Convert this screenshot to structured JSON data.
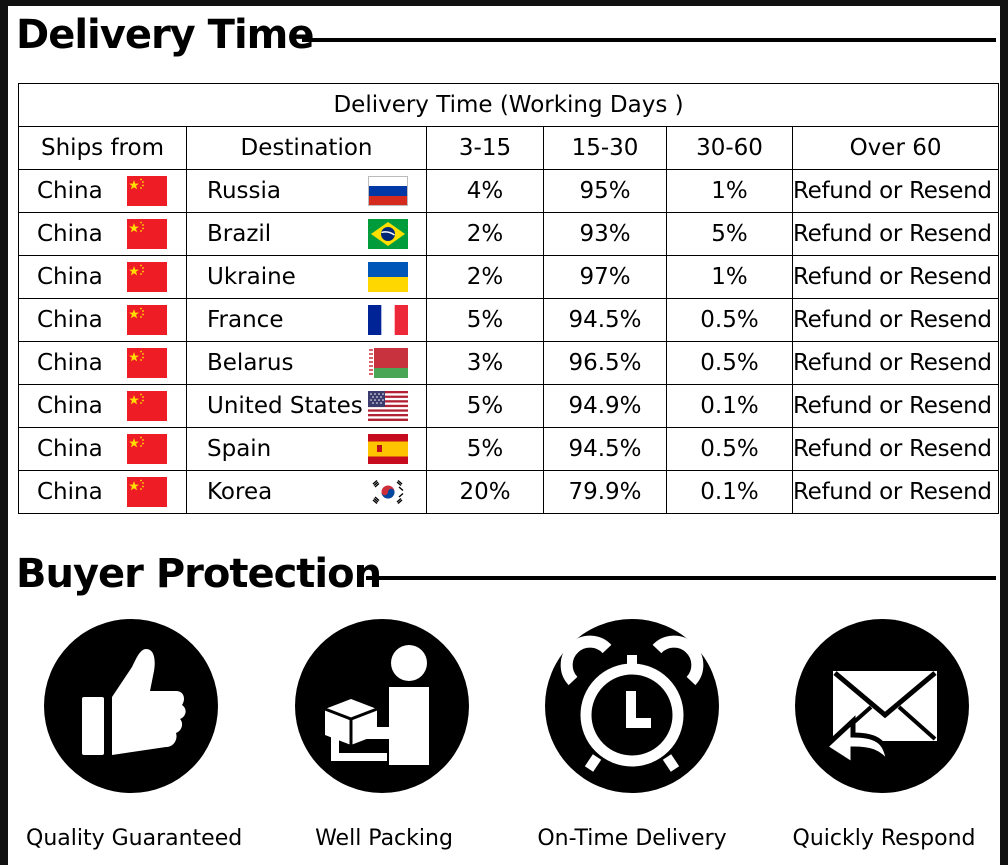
{
  "delivery": {
    "title": "Delivery Time",
    "table_title": "Delivery Time (Working Days )",
    "headers": [
      "Ships from",
      "Destination",
      "3-15",
      "15-30",
      "30-60",
      "Over 60"
    ],
    "rows": [
      {
        "from": "China",
        "from_flag": "china-flag-icon",
        "dest": "Russia",
        "dest_flag": "russia-flag-icon",
        "d3_15": "4%",
        "d15_30": "95%",
        "d30_60": "1%",
        "over60": "Refund or Resend"
      },
      {
        "from": "China",
        "from_flag": "china-flag-icon",
        "dest": "Brazil",
        "dest_flag": "brazil-flag-icon",
        "d3_15": "2%",
        "d15_30": "93%",
        "d30_60": "5%",
        "over60": "Refund or Resend"
      },
      {
        "from": "China",
        "from_flag": "china-flag-icon",
        "dest": "Ukraine",
        "dest_flag": "ukraine-flag-icon",
        "d3_15": "2%",
        "d15_30": "97%",
        "d30_60": "1%",
        "over60": "Refund or Resend"
      },
      {
        "from": "China",
        "from_flag": "china-flag-icon",
        "dest": "France",
        "dest_flag": "france-flag-icon",
        "d3_15": "5%",
        "d15_30": "94.5%",
        "d30_60": "0.5%",
        "over60": "Refund or Resend"
      },
      {
        "from": "China",
        "from_flag": "china-flag-icon",
        "dest": "Belarus",
        "dest_flag": "belarus-flag-icon",
        "d3_15": "3%",
        "d15_30": "96.5%",
        "d30_60": "0.5%",
        "over60": "Refund or Resend"
      },
      {
        "from": "China",
        "from_flag": "china-flag-icon",
        "dest": "United States",
        "dest_flag": "usa-flag-icon",
        "d3_15": "5%",
        "d15_30": "94.9%",
        "d30_60": "0.1%",
        "over60": "Refund or Resend"
      },
      {
        "from": "China",
        "from_flag": "china-flag-icon",
        "dest": "Spain",
        "dest_flag": "spain-flag-icon",
        "d3_15": "5%",
        "d15_30": "94.5%",
        "d30_60": "0.5%",
        "over60": "Refund or Resend"
      },
      {
        "from": "China",
        "from_flag": "china-flag-icon",
        "dest": "Korea",
        "dest_flag": "korea-flag-icon",
        "d3_15": "20%",
        "d15_30": "79.9%",
        "d30_60": "0.1%",
        "over60": "Refund or Resend"
      }
    ]
  },
  "protection": {
    "title": "Buyer Protection",
    "items": [
      {
        "label": "Quality Guaranteed",
        "icon": "thumbs-up-icon"
      },
      {
        "label": "Well Packing",
        "icon": "packing-person-icon"
      },
      {
        "label": "On-Time Delivery",
        "icon": "alarm-clock-icon"
      },
      {
        "label": "Quickly Respond",
        "icon": "envelope-reply-icon"
      }
    ]
  },
  "colors": {
    "accent": "#000000",
    "china_red": "#ee1c25",
    "china_star": "#ffde00"
  }
}
